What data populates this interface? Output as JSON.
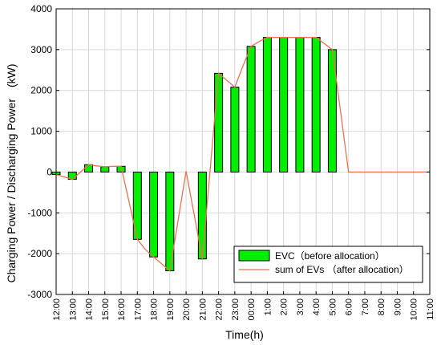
{
  "chart_data": {
    "type": "bar",
    "title": "",
    "xlabel": "Time(h)",
    "ylabel": "Charging Power / Discharging Power　(kW)",
    "ylim": [
      -3000,
      4000
    ],
    "yticks": [
      -3000,
      -2000,
      -1000,
      0,
      1000,
      2000,
      3000,
      4000
    ],
    "grid": true,
    "legend_position": "bottom-right",
    "categories": [
      "12:00",
      "13:00",
      "14:00",
      "15:00",
      "16:00",
      "17:00",
      "18:00",
      "19:00",
      "20:00",
      "21:00",
      "22:00",
      "23:00",
      "00:00",
      "1:00",
      "2:00",
      "3:00",
      "4:00",
      "5:00",
      "6:00",
      "7:00",
      "8:00",
      "9:00",
      "10:00",
      "11:00"
    ],
    "x": [
      12.0,
      12.5,
      13.0,
      13.5,
      14.0,
      14.5,
      15.0,
      15.5,
      16.0,
      16.5,
      17.0,
      17.5,
      18.0,
      18.5,
      19.0,
      19.5,
      20.0,
      20.5,
      21.0,
      21.5,
      22.0,
      22.5,
      23.0,
      23.5,
      24.0,
      24.5,
      25.0,
      25.5,
      26.0,
      26.5,
      27.0,
      27.5,
      28.0,
      28.5,
      29.0,
      29.5,
      30.0,
      30.5,
      31.0,
      31.5,
      32.0,
      32.5,
      33.0,
      33.5,
      34.0,
      34.5,
      35.0
    ],
    "series": [
      {
        "name": "EVC（before allocation）",
        "type": "bar",
        "values": [
          -60,
          null,
          -180,
          null,
          180,
          null,
          130,
          null,
          140,
          null,
          -1650,
          null,
          -2080,
          null,
          -2420,
          null,
          null,
          null,
          -2130,
          null,
          2420,
          null,
          2080,
          null,
          3080,
          null,
          3300,
          null,
          3300,
          null,
          3300,
          null,
          3300,
          null,
          3000,
          null,
          null,
          null,
          null,
          null,
          null,
          null,
          null,
          null,
          null,
          null,
          null
        ]
      },
      {
        "name": "sum of EVs （after allocation）",
        "type": "line",
        "values": [
          -60,
          -120,
          -180,
          0,
          180,
          150,
          130,
          140,
          140,
          -750,
          -1650,
          -1900,
          -2080,
          -2250,
          -2420,
          -1200,
          20,
          -1050,
          -2130,
          150,
          2420,
          2250,
          2080,
          2600,
          3080,
          3200,
          3300,
          3300,
          3300,
          3300,
          3300,
          3300,
          3300,
          3150,
          3000,
          1500,
          0,
          0,
          0,
          0,
          0,
          0,
          0,
          0,
          0,
          0,
          0
        ]
      }
    ],
    "colors": {
      "bar_fill": "#00ee00",
      "bar_edge": "#000000",
      "line": "#f07050",
      "grid": "#d8d8d8"
    }
  }
}
